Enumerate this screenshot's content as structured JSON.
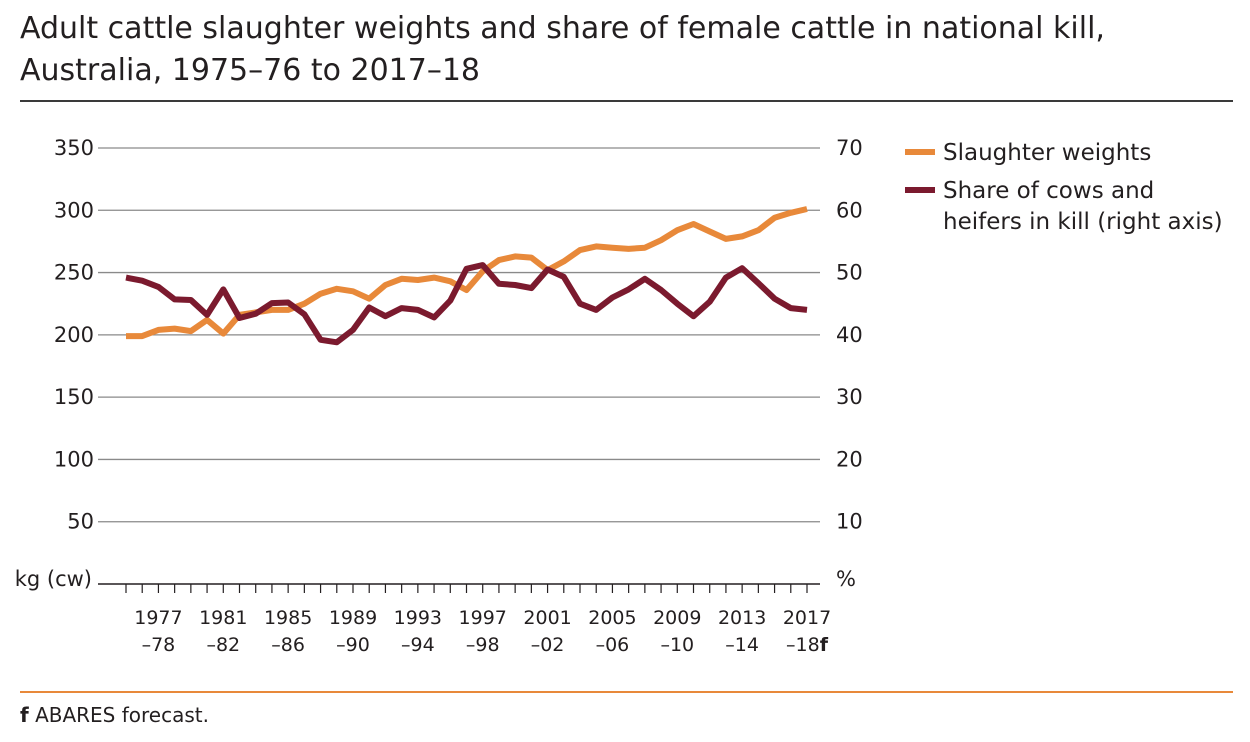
{
  "title": "Adult cattle slaughter weights and share of female cattle in national kill, Australia, 1975–76 to 2017–18",
  "footnote": {
    "marker": "f",
    "text": "ABARES forecast."
  },
  "colors": {
    "slaughter_weights": "#e8893a",
    "share_cows_heifers": "#7b1a2e",
    "grid": "#8a8a8a",
    "axis": "#231f20"
  },
  "chart_data": {
    "type": "line",
    "left_axis": {
      "unit_label": "kg (cw)",
      "ylim": [
        0,
        350
      ],
      "ticks": [
        50,
        100,
        150,
        200,
        250,
        300,
        350
      ]
    },
    "right_axis": {
      "unit_label": "%",
      "ylim": [
        0,
        70
      ],
      "ticks": [
        10,
        20,
        30,
        40,
        50,
        60,
        70
      ]
    },
    "x_tick_labels": [
      {
        "top": "1977",
        "bottom": "–78"
      },
      {
        "top": "1981",
        "bottom": "–82"
      },
      {
        "top": "1985",
        "bottom": "–86"
      },
      {
        "top": "1989",
        "bottom": "–90"
      },
      {
        "top": "1993",
        "bottom": "–94"
      },
      {
        "top": "1997",
        "bottom": "–98"
      },
      {
        "top": "2001",
        "bottom": "–02"
      },
      {
        "top": "2005",
        "bottom": "–06"
      },
      {
        "top": "2009",
        "bottom": "–10"
      },
      {
        "top": "2013",
        "bottom": "–14"
      },
      {
        "top": "2017",
        "bottom": "–18",
        "suffix": "f"
      }
    ],
    "x": [
      "1975–76",
      "1976–77",
      "1977–78",
      "1978–79",
      "1979–80",
      "1980–81",
      "1981–82",
      "1982–83",
      "1983–84",
      "1984–85",
      "1985–86",
      "1986–87",
      "1987–88",
      "1988–89",
      "1989–90",
      "1990–91",
      "1991–92",
      "1992–93",
      "1993–94",
      "1994–95",
      "1995–96",
      "1996–97",
      "1997–98",
      "1998–99",
      "1999–00",
      "2000–01",
      "2001–02",
      "2002–03",
      "2003–04",
      "2004–05",
      "2005–06",
      "2006–07",
      "2007–08",
      "2008–09",
      "2009–10",
      "2010–11",
      "2011–12",
      "2012–13",
      "2013–14",
      "2014–15",
      "2015–16",
      "2016–17",
      "2017–18"
    ],
    "series": [
      {
        "name": "Slaughter weights",
        "axis": "left",
        "values": [
          199,
          199,
          204,
          205,
          203,
          212,
          201,
          216,
          218,
          220,
          220,
          225,
          233,
          237,
          235,
          229,
          240,
          245,
          244,
          246,
          243,
          236,
          251,
          260,
          263,
          262,
          252,
          259,
          268,
          271,
          270,
          269,
          270,
          276,
          284,
          289,
          283,
          277,
          279,
          284,
          294,
          298,
          301
        ]
      },
      {
        "name": "Share of cows and heifers in kill (right axis)",
        "axis": "right",
        "values": [
          49.2,
          48.7,
          47.7,
          45.7,
          45.6,
          43.2,
          47.3,
          42.7,
          43.4,
          45.1,
          45.2,
          43.3,
          39.2,
          38.8,
          40.8,
          44.4,
          43.0,
          44.3,
          44.0,
          42.8,
          45.5,
          50.6,
          51.2,
          48.2,
          48.0,
          47.5,
          50.5,
          49.3,
          45.0,
          44.0,
          46.0,
          47.3,
          49.0,
          47.2,
          45.0,
          43.0,
          45.3,
          49.2,
          50.7,
          48.3,
          45.8,
          44.3,
          44.0
        ]
      }
    ],
    "grid": true,
    "legend_position": "top-right"
  }
}
